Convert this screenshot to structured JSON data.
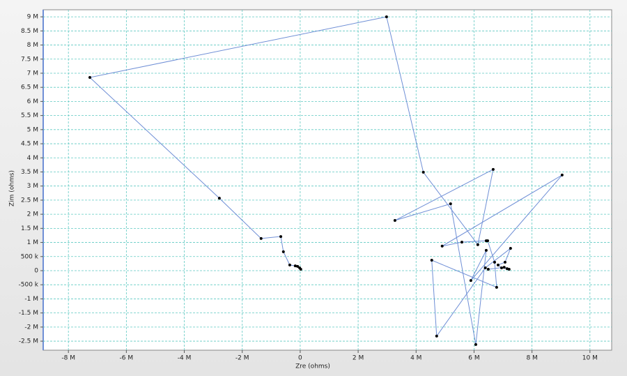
{
  "chart_data": {
    "type": "line",
    "x_label": "Zre (ohms)",
    "y_label": "Zim (ohms)",
    "x": [
      20000,
      -20000,
      -90000,
      -170000,
      -360000,
      -580000,
      -670000,
      -1350000,
      -2790000,
      -7260000,
      2980000,
      4250000,
      6130000,
      6660000,
      3270000,
      5190000,
      6060000,
      6420000,
      5890000,
      9040000,
      4900000,
      5580000,
      6420000,
      6470000,
      6710000,
      6780000,
      4540000,
      4710000,
      6390000,
      7260000,
      7070000,
      6830000,
      6950000,
      7140000,
      7210000,
      7040000,
      6490000
    ],
    "series": [
      {
        "color": "#6f8fd6",
        "marker_color": "#000000",
        "values": [
          50000,
          100000,
          150000,
          170000,
          200000,
          670000,
          1210000,
          1140000,
          2570000,
          6850000,
          9000000,
          3490000,
          920000,
          3590000,
          1780000,
          2370000,
          -2620000,
          720000,
          -350000,
          3390000,
          870000,
          1010000,
          1060000,
          1060000,
          300000,
          -590000,
          370000,
          -2320000,
          100000,
          790000,
          300000,
          200000,
          100000,
          70000,
          50000,
          120000,
          50000
        ]
      }
    ],
    "xlim": [
      -8870000,
      10750000
    ],
    "ylim": [
      -2820000,
      9250000
    ],
    "xticks": [
      {
        "value": -8000000,
        "label": "-8 M"
      },
      {
        "value": -6000000,
        "label": "-6 M"
      },
      {
        "value": -4000000,
        "label": "-4 M"
      },
      {
        "value": -2000000,
        "label": "-2 M"
      },
      0,
      {
        "value": 2000000,
        "label": "2 M"
      },
      {
        "value": 4000000,
        "label": "4 M"
      },
      {
        "value": 6000000,
        "label": "6 M"
      },
      {
        "value": 8000000,
        "label": "8 M"
      },
      {
        "value": 10000000,
        "label": "10 M"
      }
    ],
    "yticks": [
      {
        "value": -2500000,
        "label": "-2.5 M"
      },
      {
        "value": -2000000,
        "label": "-2 M"
      },
      {
        "value": -1500000,
        "label": "-1.5 M"
      },
      {
        "value": -1000000,
        "label": "-1 M"
      },
      {
        "value": -500000,
        "label": "-500 k"
      },
      0,
      {
        "value": 500000,
        "label": "500 k"
      },
      {
        "value": 1000000,
        "label": "1 M"
      },
      {
        "value": 1500000,
        "label": "1.5 M"
      },
      {
        "value": 2000000,
        "label": "2 M"
      },
      {
        "value": 2500000,
        "label": "2.5 M"
      },
      {
        "value": 3000000,
        "label": "3 M"
      },
      {
        "value": 3500000,
        "label": "3.5 M"
      },
      {
        "value": 4000000,
        "label": "4 M"
      },
      {
        "value": 4500000,
        "label": "4.5 M"
      },
      {
        "value": 5000000,
        "label": "5 M"
      },
      {
        "value": 5500000,
        "label": "5.5 M"
      },
      {
        "value": 6000000,
        "label": "6 M"
      },
      {
        "value": 6500000,
        "label": "6.5 M"
      },
      {
        "value": 7000000,
        "label": "7 M"
      },
      {
        "value": 7500000,
        "label": "7.5 M"
      },
      {
        "value": 8000000,
        "label": "8 M"
      },
      {
        "value": 8500000,
        "label": "8.5 M"
      },
      {
        "value": 9000000,
        "label": "9 M"
      }
    ],
    "grid": true,
    "grid_color": "#5fc9c2"
  }
}
